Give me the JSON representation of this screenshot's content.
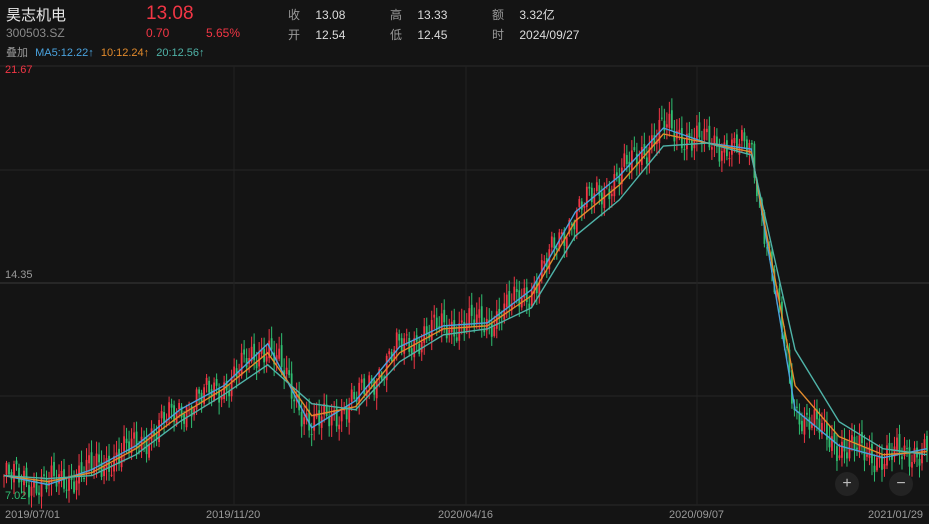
{
  "header": {
    "stock_name": "昊志机电",
    "stock_code": "300503.SZ",
    "last_price": "13.08",
    "change": "0.70",
    "change_pct": "5.65%",
    "close_label": "收",
    "close_value": "13.08",
    "open_label": "开",
    "open_value": "12.54",
    "high_label": "高",
    "high_value": "13.33",
    "low_label": "低",
    "low_value": "12.45",
    "amount_label": "额",
    "amount_value": "3.32亿",
    "time_label": "时",
    "time_value": "2024/09/27"
  },
  "ma": {
    "overlay_label": "叠加",
    "ma5_text": "MA5:12.22↑",
    "ma10_text": "10:12.24↑",
    "ma20_text": "20:12.56↑"
  },
  "colors": {
    "up": "#f23645",
    "down": "#2fbf71",
    "ma5": "#4aa3df",
    "ma10": "#e38b2c",
    "ma20": "#4fb3a8"
  },
  "controls": {
    "zoom_in": "+",
    "zoom_out": "−"
  },
  "chart_data": {
    "type": "line",
    "ylim": [
      7.02,
      21.67
    ],
    "yticks": [
      "21.67",
      "14.35",
      "7.02"
    ],
    "xticks": [
      "2019/07/01",
      "2019/11/20",
      "2020/04/16",
      "2020/09/07",
      "2021/01/29"
    ],
    "x": [
      "2019/07/01",
      "2019/08/15",
      "2019/10/01",
      "2019/11/20",
      "2020/01/01",
      "2020/02/03",
      "2020/02/20",
      "2020/03/20",
      "2020/04/16",
      "2020/05/15",
      "2020/06/10",
      "2020/07/10",
      "2020/08/10",
      "2020/09/07",
      "2020/09/25",
      "2020/10/20",
      "2020/11/10",
      "2020/12/01",
      "2020/12/28",
      "2021/01/10",
      "2021/01/20",
      "2021/01/29"
    ],
    "series": [
      {
        "name": "MA5",
        "values": [
          8.0,
          7.7,
          8.2,
          9.0,
          10.2,
          11.0,
          12.4,
          9.6,
          10.5,
          12.3,
          13.0,
          13.1,
          14.2,
          16.8,
          18.0,
          19.6,
          19.1,
          18.9,
          10.2,
          9.0,
          8.6,
          8.9
        ]
      },
      {
        "name": "MA10",
        "values": [
          8.0,
          7.8,
          8.1,
          8.9,
          10.0,
          10.9,
          12.1,
          10.0,
          10.3,
          12.1,
          12.9,
          13.0,
          14.0,
          16.5,
          17.7,
          19.4,
          19.1,
          18.8,
          11.0,
          9.3,
          8.7,
          8.8
        ]
      },
      {
        "name": "20",
        "values": [
          8.0,
          7.9,
          8.0,
          8.7,
          9.8,
          10.7,
          11.7,
          10.4,
          10.2,
          11.8,
          12.7,
          12.9,
          13.6,
          16.0,
          17.2,
          19.0,
          19.1,
          18.7,
          12.2,
          9.8,
          8.9,
          8.7
        ]
      }
    ]
  }
}
